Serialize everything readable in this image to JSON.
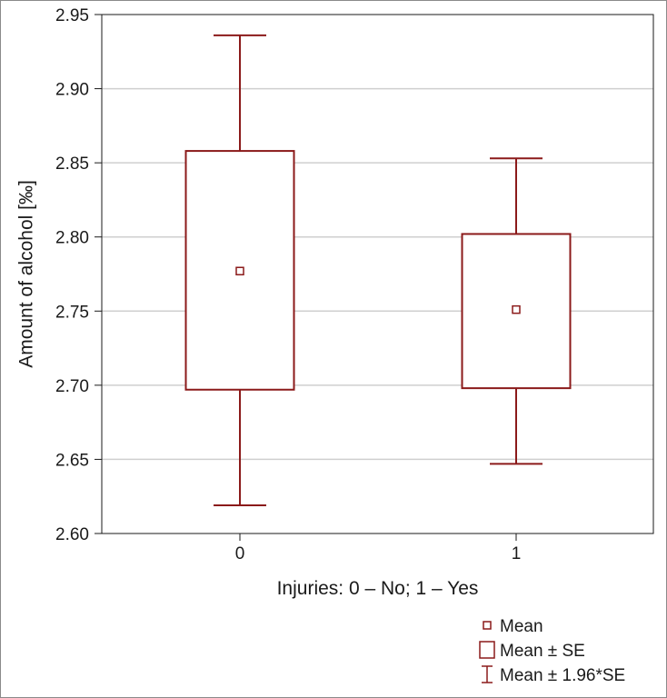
{
  "chart_data": {
    "type": "box",
    "xlabel": "Injuries: 0 – No; 1 – Yes",
    "ylabel": "Amount of alcohol [‰]",
    "ylim": [
      2.6,
      2.95
    ],
    "yticks": [
      2.6,
      2.65,
      2.7,
      2.75,
      2.8,
      2.85,
      2.9,
      2.95
    ],
    "ytick_labels": [
      "2.60",
      "2.65",
      "2.70",
      "2.75",
      "2.80",
      "2.85",
      "2.90",
      "2.95"
    ],
    "grid": true,
    "categories": [
      "0",
      "1"
    ],
    "groups": [
      {
        "category": "0",
        "mean": 2.777,
        "se_low": 2.697,
        "se_high": 2.858,
        "ci_low": 2.619,
        "ci_high": 2.936
      },
      {
        "category": "1",
        "mean": 2.751,
        "se_low": 2.698,
        "se_high": 2.802,
        "ci_low": 2.647,
        "ci_high": 2.853
      }
    ],
    "legend": {
      "placement": "bottom-right",
      "items": [
        {
          "symbol": "mean-marker",
          "label": "Mean"
        },
        {
          "symbol": "box",
          "label": "Mean ± SE"
        },
        {
          "symbol": "whisker",
          "label": "Mean ± 1.96*SE"
        }
      ]
    },
    "color": "#8b1a1a",
    "grid_color": "#cfcfcf"
  }
}
